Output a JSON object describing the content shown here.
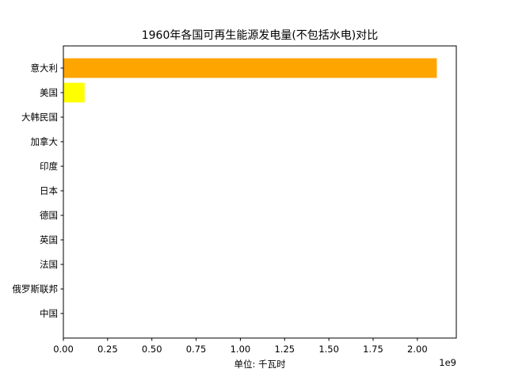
{
  "chart_data": {
    "type": "bar",
    "orientation": "horizontal",
    "title": "1960年各国可再生能源发电量(不包括水电)对比",
    "xlabel": "单位: 千瓦时",
    "ylabel": "",
    "x_multiplier_label": "1e9",
    "xlim": [
      0,
      2.22
    ],
    "x_ticks": [
      0.0,
      0.25,
      0.5,
      0.75,
      1.0,
      1.25,
      1.5,
      1.75,
      2.0
    ],
    "x_tick_labels": [
      "0.00",
      "0.25",
      "0.50",
      "0.75",
      "1.00",
      "1.25",
      "1.50",
      "1.75",
      "2.00"
    ],
    "categories": [
      "意大利",
      "美国",
      "大韩民国",
      "加拿大",
      "印度",
      "日本",
      "德国",
      "英国",
      "法国",
      "俄罗斯联邦",
      "中国"
    ],
    "values": [
      2.11,
      0.12,
      0,
      0,
      0,
      0,
      0,
      0,
      0,
      0,
      0
    ],
    "colors": [
      "#ffa500",
      "#ffff00",
      "#ffa500",
      "#ffa500",
      "#ffa500",
      "#ffa500",
      "#ffa500",
      "#ffa500",
      "#ffa500",
      "#ffa500",
      "#ffa500"
    ],
    "grid": false,
    "legend": "none"
  }
}
